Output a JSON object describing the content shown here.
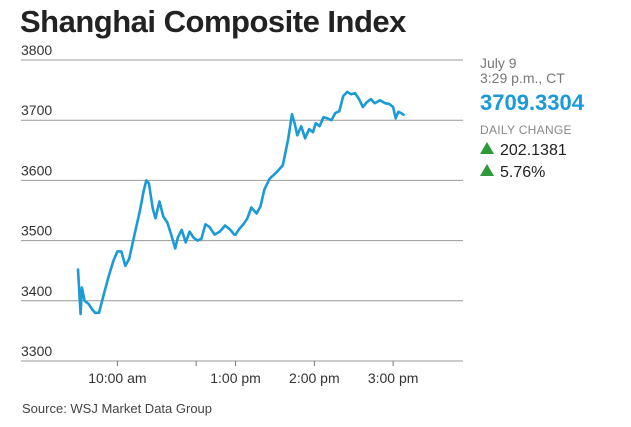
{
  "header": {
    "title": "Shanghai Composite Index"
  },
  "info": {
    "date": "July 9",
    "time": "3:29 p.m., CT",
    "price": "3709.3304",
    "daily_change_label": "DAILY CHANGE",
    "change_points": "202.1381",
    "change_percent": "5.76%"
  },
  "source": "Source: WSJ Market Data Group",
  "colors": {
    "line": "#1a9ad6",
    "up_arrow": "#2d9a3a",
    "grid": "#999999"
  },
  "chart_data": {
    "type": "line",
    "title": "Shanghai Composite Index",
    "xlabel": "",
    "ylabel": "",
    "ylim": [
      3300,
      3800
    ],
    "yticks": [
      3800,
      3700,
      3600,
      3500,
      3400,
      3300
    ],
    "xlim": [
      "9:30 am",
      "3:00 pm"
    ],
    "xticks": [
      {
        "t": "10:00 am",
        "label": "10:00 am"
      },
      {
        "t": "11:00 am",
        "label": ""
      },
      {
        "t": "1:00 pm",
        "label": "1:00 pm"
      },
      {
        "t": "2:00 pm",
        "label": "2:00 pm"
      },
      {
        "t": "3:00 pm",
        "label": "3:00 pm"
      }
    ],
    "grid": true,
    "series": [
      {
        "values": [
          [
            "9:30 am",
            3452
          ],
          [
            "9:32 am",
            3378
          ],
          [
            "9:33 am",
            3422
          ],
          [
            "9:35 am",
            3400
          ],
          [
            "9:38 am",
            3395
          ],
          [
            "9:41 am",
            3385
          ],
          [
            "9:43 am",
            3380
          ],
          [
            "9:46 am",
            3380
          ],
          [
            "9:49 am",
            3405
          ],
          [
            "9:53 am",
            3438
          ],
          [
            "9:57 am",
            3467
          ],
          [
            "10:00 am",
            3482
          ],
          [
            "10:03 am",
            3482
          ],
          [
            "10:06 am",
            3458
          ],
          [
            "10:09 am",
            3470
          ],
          [
            "10:13 am",
            3510
          ],
          [
            "10:17 am",
            3548
          ],
          [
            "10:20 am",
            3582
          ],
          [
            "10:22 am",
            3600
          ],
          [
            "10:24 am",
            3595
          ],
          [
            "10:27 am",
            3553
          ],
          [
            "10:29 am",
            3537
          ],
          [
            "10:32 am",
            3565
          ],
          [
            "10:35 am",
            3540
          ],
          [
            "10:38 am",
            3530
          ],
          [
            "10:41 am",
            3510
          ],
          [
            "10:44 am",
            3487
          ],
          [
            "10:46 am",
            3505
          ],
          [
            "10:49 am",
            3518
          ],
          [
            "10:52 am",
            3497
          ],
          [
            "10:55 am",
            3515
          ],
          [
            "10:58 am",
            3505
          ],
          [
            "11:01 am",
            3500
          ],
          [
            "11:04 am",
            3503
          ],
          [
            "11:07 am",
            3527
          ],
          [
            "11:10 am",
            3523
          ],
          [
            "11:14 am",
            3510
          ],
          [
            "11:18 am",
            3515
          ],
          [
            "11:22 am",
            3525
          ],
          [
            "11:26 am",
            3518
          ],
          [
            "11:29 am",
            3510
          ],
          [
            "1:00 pm",
            3510
          ],
          [
            "1:03 pm",
            3520
          ],
          [
            "1:06 pm",
            3527
          ],
          [
            "1:09 pm",
            3537
          ],
          [
            "1:12 pm",
            3555
          ],
          [
            "1:16 pm",
            3545
          ],
          [
            "1:19 pm",
            3557
          ],
          [
            "1:22 pm",
            3585
          ],
          [
            "1:26 pm",
            3603
          ],
          [
            "1:31 pm",
            3613
          ],
          [
            "1:36 pm",
            3625
          ],
          [
            "1:40 pm",
            3668
          ],
          [
            "1:43 pm",
            3710
          ],
          [
            "1:45 pm",
            3695
          ],
          [
            "1:47 pm",
            3675
          ],
          [
            "1:50 pm",
            3690
          ],
          [
            "1:53 pm",
            3670
          ],
          [
            "1:56 pm",
            3685
          ],
          [
            "1:59 pm",
            3680
          ],
          [
            "2:01 pm",
            3695
          ],
          [
            "2:04 pm",
            3690
          ],
          [
            "2:07 pm",
            3705
          ],
          [
            "2:10 pm",
            3703
          ],
          [
            "2:13 pm",
            3700
          ],
          [
            "2:16 pm",
            3712
          ],
          [
            "2:19 pm",
            3715
          ],
          [
            "2:22 pm",
            3740
          ],
          [
            "2:25 pm",
            3747
          ],
          [
            "2:28 pm",
            3743
          ],
          [
            "2:31 pm",
            3745
          ],
          [
            "2:34 pm",
            3735
          ],
          [
            "2:37 pm",
            3722
          ],
          [
            "2:40 pm",
            3730
          ],
          [
            "2:43 pm",
            3735
          ],
          [
            "2:46 pm",
            3728
          ],
          [
            "2:50 pm",
            3733
          ],
          [
            "2:54 pm",
            3728
          ],
          [
            "2:57 pm",
            3727
          ],
          [
            "3:00 pm",
            3722
          ],
          [
            "3:02 pm",
            3703
          ],
          [
            "3:04 pm",
            3714
          ],
          [
            "3:06 pm",
            3712
          ],
          [
            "3:08 pm",
            3709
          ]
        ]
      }
    ]
  }
}
